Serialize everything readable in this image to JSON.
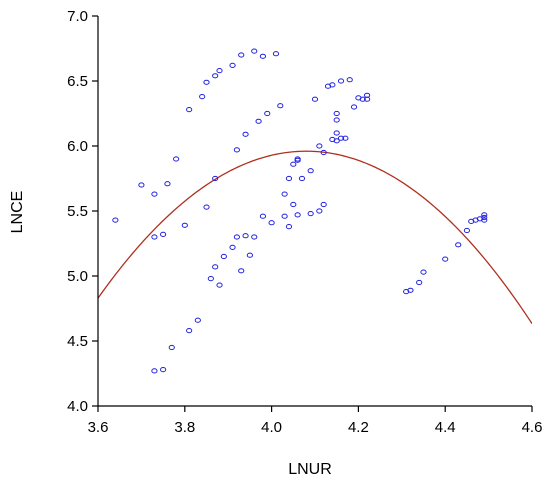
{
  "chart_data": {
    "type": "scatter",
    "xlabel": "LNUR",
    "ylabel": "LNCE",
    "xlim": [
      3.6,
      4.6
    ],
    "ylim": [
      4.0,
      7.0
    ],
    "x_ticks": [
      "3.6",
      "3.8",
      "4.0",
      "4.2",
      "4.4",
      "4.6"
    ],
    "y_ticks": [
      "4.0",
      "4.5",
      "5.0",
      "5.5",
      "6.0",
      "6.5",
      "7.0"
    ],
    "grid": false,
    "points_color": "#2020e0",
    "fit_color": "#b03020",
    "fit_curve": {
      "type": "quadratic",
      "vertex_x": 4.08,
      "vertex_y": 5.96,
      "a": -4.905
    },
    "points": [
      [
        3.64,
        5.43
      ],
      [
        3.7,
        5.7
      ],
      [
        3.73,
        5.63
      ],
      [
        3.73,
        5.3
      ],
      [
        3.75,
        5.32
      ],
      [
        3.76,
        5.71
      ],
      [
        3.78,
        5.9
      ],
      [
        3.8,
        5.39
      ],
      [
        3.81,
        6.28
      ],
      [
        3.84,
        6.38
      ],
      [
        3.85,
        6.49
      ],
      [
        3.87,
        6.54
      ],
      [
        3.88,
        6.58
      ],
      [
        3.91,
        6.62
      ],
      [
        3.93,
        6.7
      ],
      [
        3.96,
        6.73
      ],
      [
        3.98,
        6.69
      ],
      [
        4.01,
        6.71
      ],
      [
        3.87,
        5.75
      ],
      [
        3.85,
        5.53
      ],
      [
        3.92,
        5.97
      ],
      [
        3.94,
        6.09
      ],
      [
        3.97,
        6.19
      ],
      [
        3.99,
        6.25
      ],
      [
        4.02,
        6.31
      ],
      [
        3.73,
        4.27
      ],
      [
        3.75,
        4.28
      ],
      [
        3.77,
        4.45
      ],
      [
        3.81,
        4.58
      ],
      [
        3.83,
        4.66
      ],
      [
        3.86,
        4.98
      ],
      [
        3.87,
        5.07
      ],
      [
        3.88,
        4.93
      ],
      [
        3.89,
        5.15
      ],
      [
        3.91,
        5.22
      ],
      [
        3.92,
        5.3
      ],
      [
        3.93,
        5.04
      ],
      [
        3.94,
        5.31
      ],
      [
        3.95,
        5.16
      ],
      [
        3.96,
        5.3
      ],
      [
        3.98,
        5.46
      ],
      [
        4.0,
        5.41
      ],
      [
        4.03,
        5.63
      ],
      [
        4.04,
        5.75
      ],
      [
        4.05,
        5.86
      ],
      [
        4.06,
        5.89
      ],
      [
        4.06,
        5.9
      ],
      [
        4.07,
        5.75
      ],
      [
        4.09,
        5.81
      ],
      [
        4.03,
        5.46
      ],
      [
        4.04,
        5.38
      ],
      [
        4.05,
        5.55
      ],
      [
        4.06,
        5.47
      ],
      [
        4.09,
        5.48
      ],
      [
        4.11,
        5.5
      ],
      [
        4.12,
        5.55
      ],
      [
        4.1,
        6.36
      ],
      [
        4.11,
        6.0
      ],
      [
        4.12,
        5.95
      ],
      [
        4.13,
        6.46
      ],
      [
        4.14,
        6.47
      ],
      [
        4.14,
        6.05
      ],
      [
        4.15,
        6.04
      ],
      [
        4.15,
        6.1
      ],
      [
        4.15,
        6.2
      ],
      [
        4.15,
        6.25
      ],
      [
        4.16,
        6.5
      ],
      [
        4.16,
        6.06
      ],
      [
        4.17,
        6.06
      ],
      [
        4.18,
        6.51
      ],
      [
        4.19,
        6.3
      ],
      [
        4.2,
        6.37
      ],
      [
        4.21,
        6.36
      ],
      [
        4.22,
        6.36
      ],
      [
        4.22,
        6.39
      ],
      [
        4.31,
        4.88
      ],
      [
        4.32,
        4.89
      ],
      [
        4.34,
        4.95
      ],
      [
        4.35,
        5.03
      ],
      [
        4.4,
        5.13
      ],
      [
        4.43,
        5.24
      ],
      [
        4.45,
        5.35
      ],
      [
        4.46,
        5.42
      ],
      [
        4.47,
        5.43
      ],
      [
        4.48,
        5.44
      ],
      [
        4.49,
        5.45
      ],
      [
        4.49,
        5.43
      ],
      [
        4.49,
        5.47
      ]
    ]
  }
}
